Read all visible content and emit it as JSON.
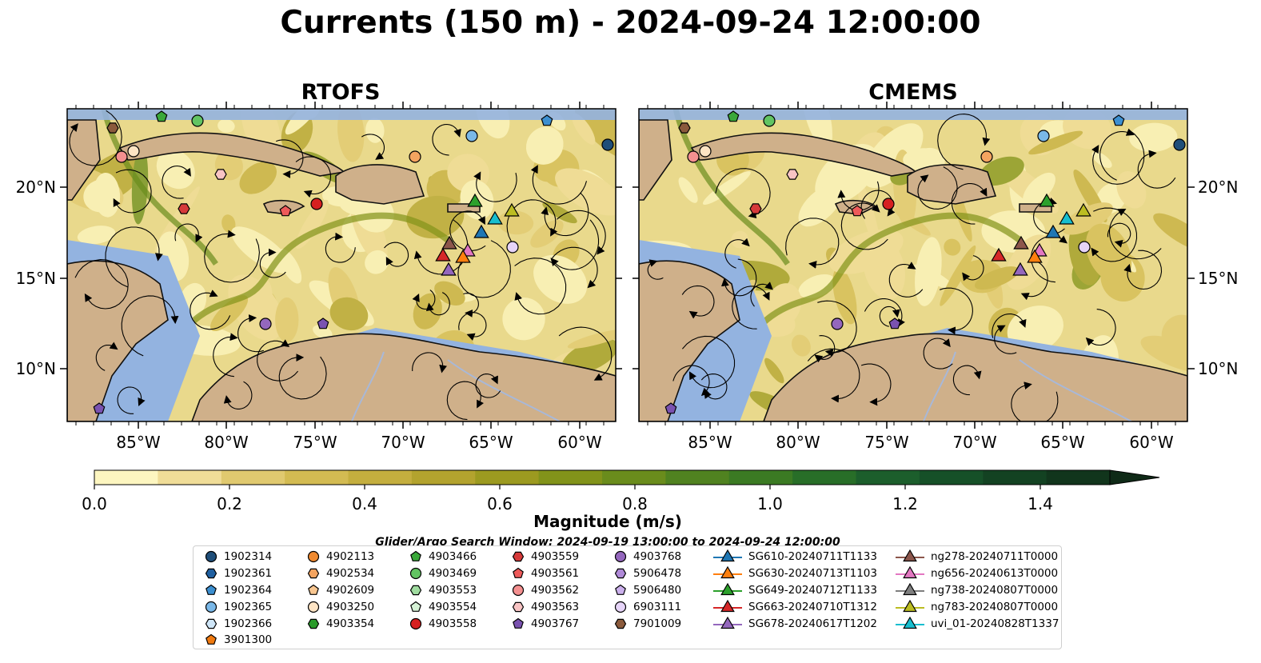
{
  "title": "Currents (150 m) - 2024-09-24 12:00:00",
  "panels": [
    {
      "title": "RTOFS"
    },
    {
      "title": "CMEMS"
    }
  ],
  "axes": {
    "lon_ticks": [
      "85°W",
      "80°W",
      "75°W",
      "70°W",
      "65°W",
      "60°W"
    ],
    "lat_ticks": [
      "20°N",
      "15°N",
      "10°N"
    ]
  },
  "colorbar": {
    "label": "Magnitude (m/s)",
    "ticks": [
      "0.0",
      "0.2",
      "0.4",
      "0.6",
      "0.8",
      "1.0",
      "1.2",
      "1.4"
    ],
    "colors": [
      "#fdf6c0",
      "#f0dd98",
      "#e0c96f",
      "#d3bb52",
      "#c4ae3e",
      "#b3a32e",
      "#9c9a20",
      "#82931a",
      "#6a8c1c",
      "#508220",
      "#3b7a23",
      "#286e28",
      "#1c5e2c",
      "#165028",
      "#134222",
      "#11351c"
    ]
  },
  "search_window": "Glider/Argo Search Window: 2024-09-19 13:00:00 to 2024-09-24 12:00:00",
  "legend": {
    "columns": [
      [
        {
          "label": "1902314",
          "marker": "circle",
          "color": "#1f4e79"
        },
        {
          "label": "1902361",
          "marker": "hexagon",
          "color": "#1f5fa0"
        },
        {
          "label": "1902364",
          "marker": "pentagon",
          "color": "#3c8fd0"
        },
        {
          "label": "1902365",
          "marker": "circle",
          "color": "#7ab8e8"
        },
        {
          "label": "1902366",
          "marker": "hexagon",
          "color": "#cfe6f8"
        },
        {
          "label": "3901300",
          "marker": "pentagon",
          "color": "#f07a10"
        }
      ],
      [
        {
          "label": "4902113",
          "marker": "circle",
          "color": "#f08a30"
        },
        {
          "label": "4902534",
          "marker": "hexagon",
          "color": "#f4a460"
        },
        {
          "label": "4902609",
          "marker": "pentagon",
          "color": "#f8c690"
        },
        {
          "label": "4903250",
          "marker": "circle",
          "color": "#fde4c4"
        },
        {
          "label": "4903354",
          "marker": "hexagon",
          "color": "#2a9a2a"
        }
      ],
      [
        {
          "label": "4903466",
          "marker": "pentagon",
          "color": "#3aa83a"
        },
        {
          "label": "4903469",
          "marker": "circle",
          "color": "#62c462"
        },
        {
          "label": "4903553",
          "marker": "hexagon",
          "color": "#a0dca0"
        },
        {
          "label": "4903554",
          "marker": "pentagon",
          "color": "#d6f2d6"
        },
        {
          "label": "4903558",
          "marker": "circle",
          "color": "#d62020"
        }
      ],
      [
        {
          "label": "4903559",
          "marker": "hexagon",
          "color": "#d63a3a"
        },
        {
          "label": "4903561",
          "marker": "pentagon",
          "color": "#ee5a5a"
        },
        {
          "label": "4903562",
          "marker": "circle",
          "color": "#f49090"
        },
        {
          "label": "4903563",
          "marker": "hexagon",
          "color": "#f8c4c4"
        },
        {
          "label": "4903767",
          "marker": "pentagon",
          "color": "#7a52b0"
        }
      ],
      [
        {
          "label": "4903768",
          "marker": "circle",
          "color": "#9467bd"
        },
        {
          "label": "5906478",
          "marker": "hexagon",
          "color": "#b08ad8"
        },
        {
          "label": "5906480",
          "marker": "pentagon",
          "color": "#cbb0ec"
        },
        {
          "label": "6903111",
          "marker": "circle",
          "color": "#e6d4f8"
        },
        {
          "label": "7901009",
          "marker": "hexagon",
          "color": "#8b5a3c"
        }
      ],
      [
        {
          "label": "SG610-20240711T1133",
          "marker": "triangle",
          "color": "#1f77b4"
        },
        {
          "label": "SG630-20240713T1103",
          "marker": "triangle",
          "color": "#ff7f0e"
        },
        {
          "label": "SG649-20240712T1133",
          "marker": "triangle",
          "color": "#2ca02c"
        },
        {
          "label": "SG663-20240710T1312",
          "marker": "triangle",
          "color": "#d62728"
        },
        {
          "label": "SG678-20240617T1202",
          "marker": "triangle",
          "color": "#9467bd"
        }
      ],
      [
        {
          "label": "ng278-20240711T0000",
          "marker": "triangle",
          "color": "#8c564b"
        },
        {
          "label": "ng656-20240613T0000",
          "marker": "triangle",
          "color": "#e377c2"
        },
        {
          "label": "ng738-20240807T0000",
          "marker": "triangle",
          "color": "#7f7f7f"
        },
        {
          "label": "ng783-20240807T0000",
          "marker": "triangle",
          "color": "#bcbd22"
        },
        {
          "label": "uvi_01-20240828T1337",
          "marker": "triangle",
          "color": "#17becf"
        }
      ]
    ]
  },
  "map_colors": {
    "ocean": "#e9d98c",
    "land": "#cfb08a",
    "shelf": "#93b3e0",
    "river": "#a8b8d8"
  }
}
